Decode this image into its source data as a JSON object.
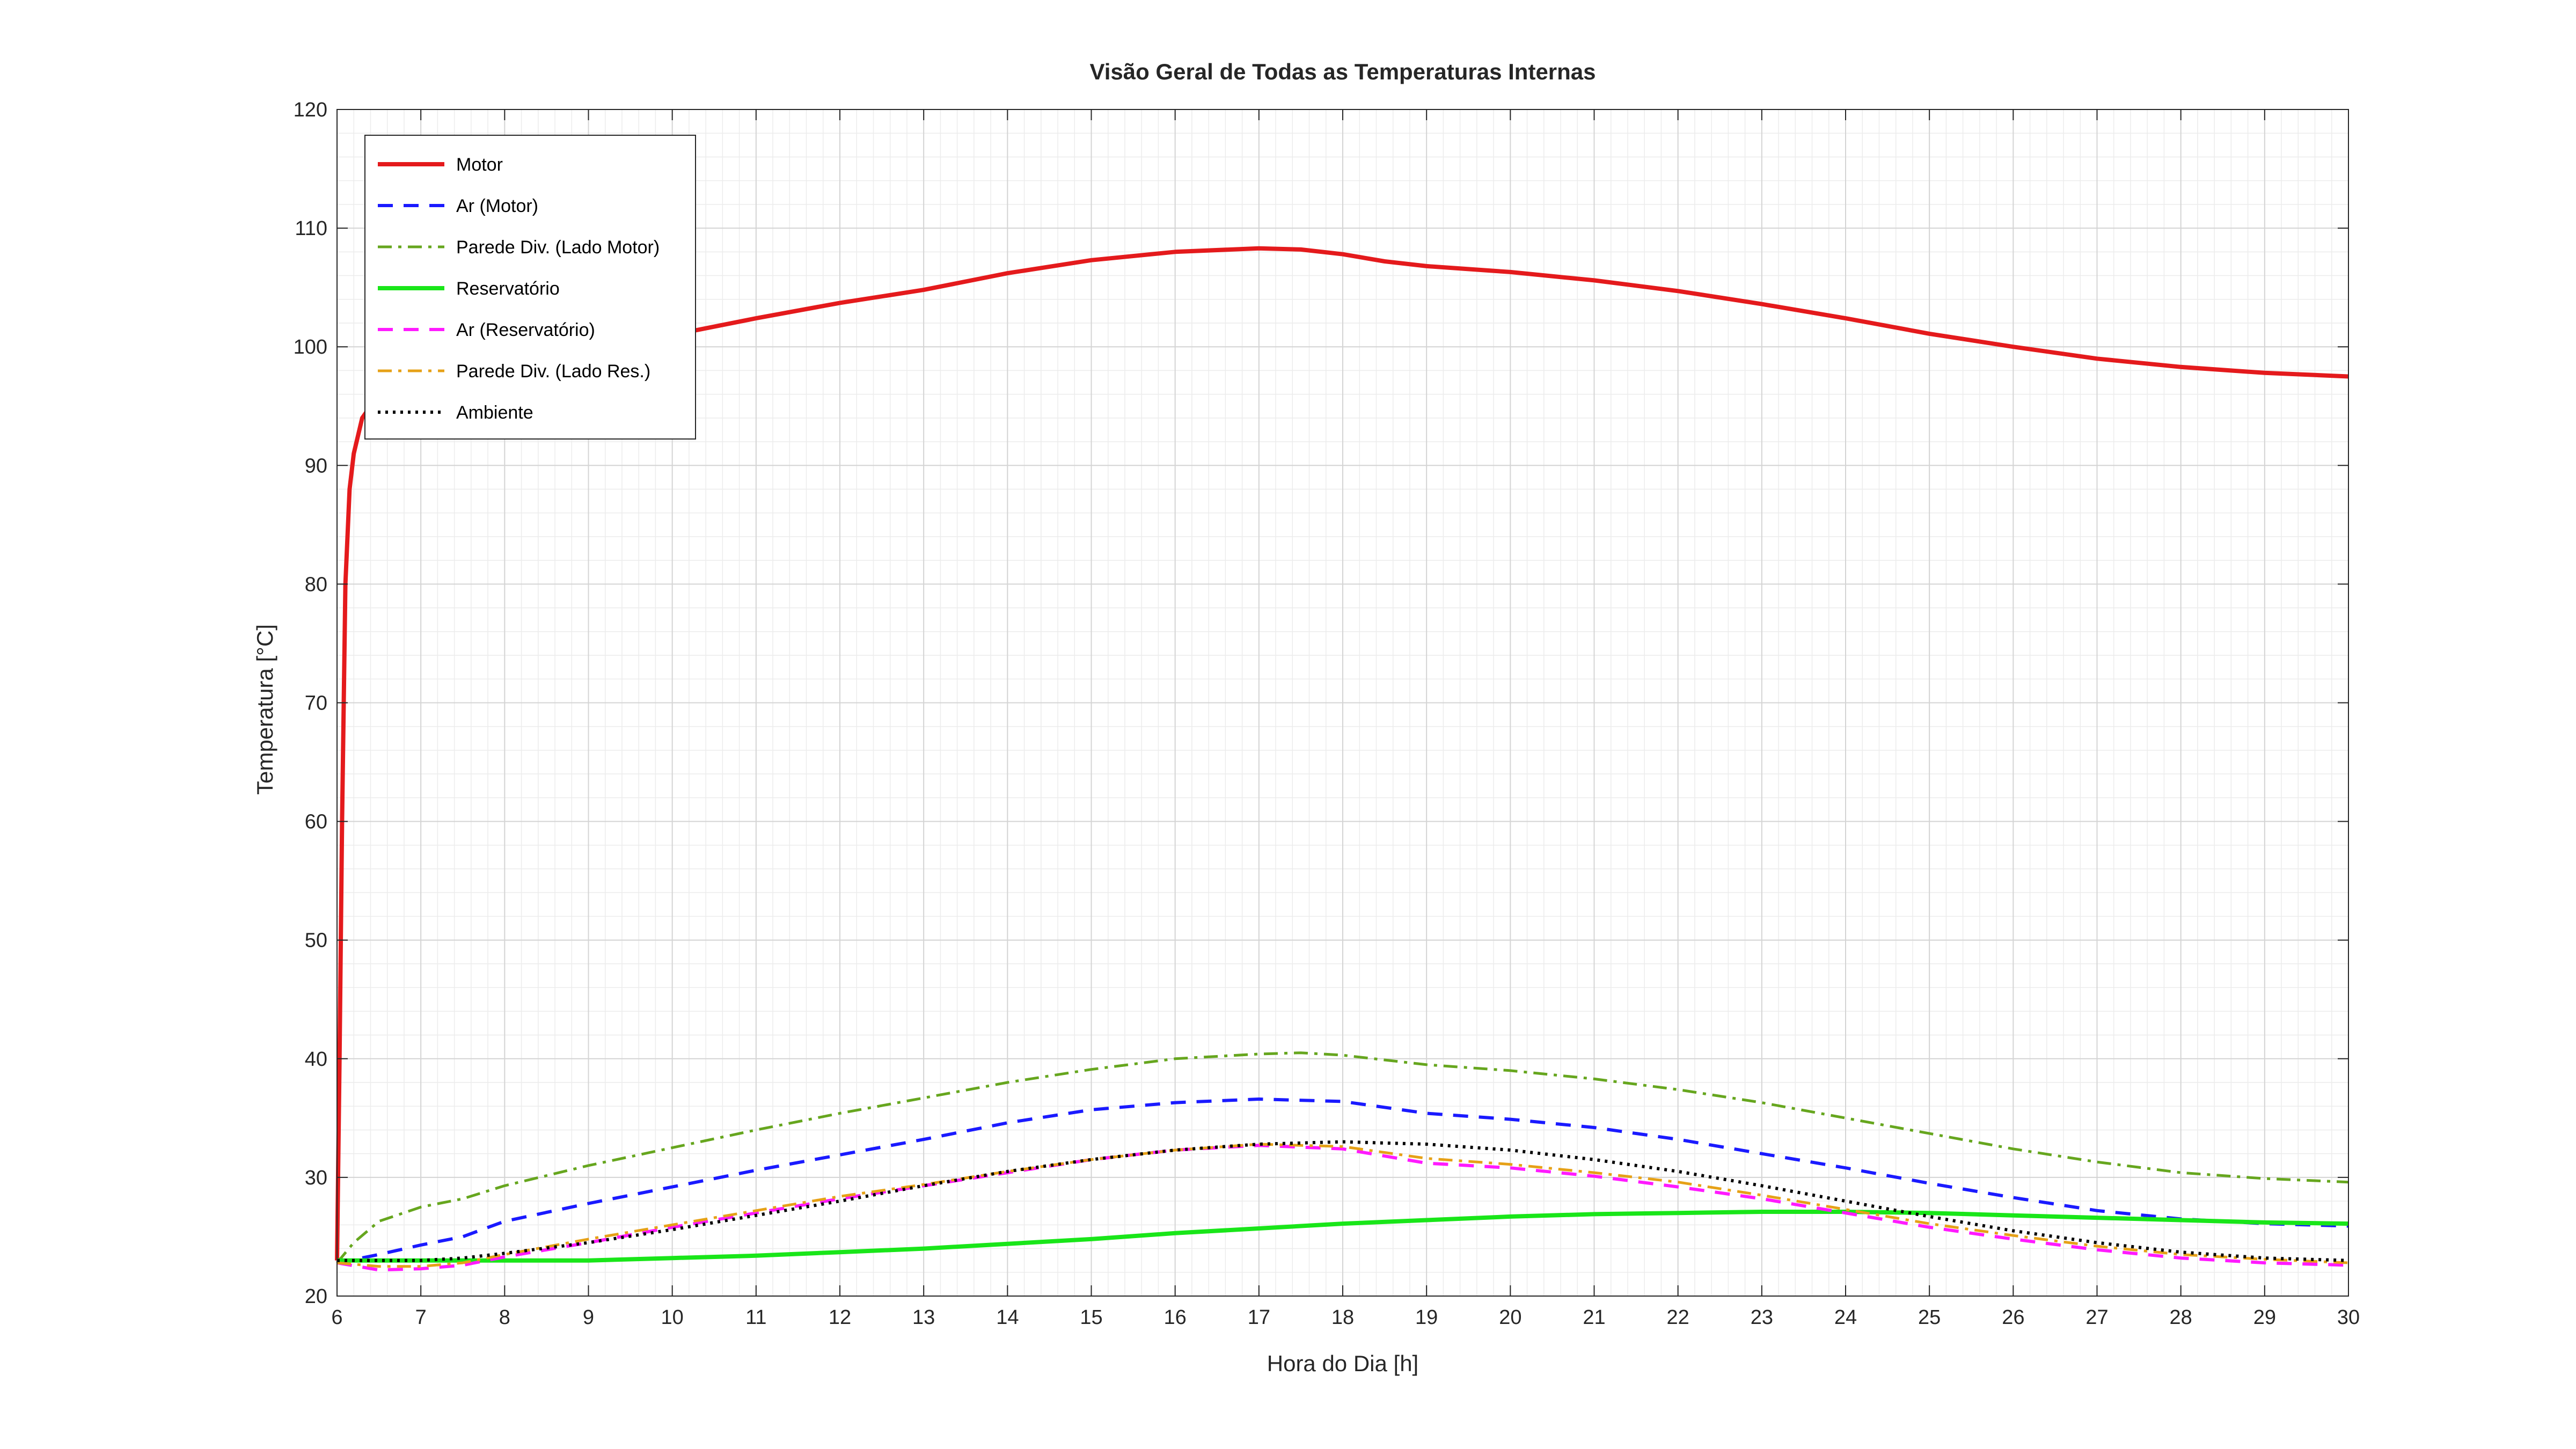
{
  "chart_data": {
    "type": "line",
    "title": "Visão Geral de Todas as Temperaturas Internas",
    "xlabel": "Hora do Dia [h]",
    "ylabel": "Temperatura [°C]",
    "xlim": [
      6,
      30
    ],
    "ylim": [
      20,
      120
    ],
    "xticks": [
      "6",
      "7",
      "8",
      "9",
      "10",
      "11",
      "12",
      "13",
      "14",
      "15",
      "16",
      "17",
      "18",
      "19",
      "20",
      "21",
      "22",
      "23",
      "24",
      "25",
      "26",
      "27",
      "28",
      "29",
      "30"
    ],
    "yticks": [
      "20",
      "30",
      "40",
      "50",
      "60",
      "70",
      "80",
      "90",
      "100",
      "110",
      "120"
    ],
    "grid": true,
    "minor_grid": true,
    "legend_position": "top-left",
    "series": [
      {
        "name": "Motor",
        "color": "#e41a1c",
        "style": "solid",
        "points": [
          [
            6,
            23
          ],
          [
            6.03,
            40
          ],
          [
            6.06,
            60
          ],
          [
            6.1,
            80
          ],
          [
            6.15,
            88
          ],
          [
            6.2,
            91
          ],
          [
            6.3,
            94
          ],
          [
            6.5,
            96
          ],
          [
            6.8,
            97.5
          ],
          [
            7,
            98.3
          ],
          [
            8,
            99.7
          ],
          [
            9,
            100.3
          ],
          [
            10,
            101
          ],
          [
            11,
            102.4
          ],
          [
            12,
            103.7
          ],
          [
            13,
            104.8
          ],
          [
            14,
            106.2
          ],
          [
            15,
            107.3
          ],
          [
            16,
            108
          ],
          [
            17,
            108.3
          ],
          [
            17.5,
            108.2
          ],
          [
            18,
            107.8
          ],
          [
            18.5,
            107.2
          ],
          [
            19,
            106.8
          ],
          [
            20,
            106.3
          ],
          [
            21,
            105.6
          ],
          [
            22,
            104.7
          ],
          [
            23,
            103.6
          ],
          [
            24,
            102.4
          ],
          [
            25,
            101.1
          ],
          [
            26,
            100
          ],
          [
            27,
            99
          ],
          [
            28,
            98.3
          ],
          [
            29,
            97.8
          ],
          [
            30,
            97.5
          ]
        ]
      },
      {
        "name": "Ar (Motor)",
        "color": "#1a1aff",
        "style": "dashed",
        "points": [
          [
            6,
            22.8
          ],
          [
            6.5,
            23.5
          ],
          [
            7,
            24.3
          ],
          [
            7.5,
            25
          ],
          [
            8,
            26.3
          ],
          [
            9,
            27.8
          ],
          [
            10,
            29.2
          ],
          [
            11,
            30.6
          ],
          [
            12,
            31.9
          ],
          [
            13,
            33.2
          ],
          [
            14,
            34.6
          ],
          [
            15,
            35.7
          ],
          [
            16,
            36.3
          ],
          [
            17,
            36.6
          ],
          [
            18,
            36.4
          ],
          [
            19,
            35.4
          ],
          [
            20,
            34.9
          ],
          [
            21,
            34.2
          ],
          [
            22,
            33.2
          ],
          [
            23,
            32
          ],
          [
            24,
            30.8
          ],
          [
            25,
            29.5
          ],
          [
            26,
            28.3
          ],
          [
            27,
            27.2
          ],
          [
            28,
            26.5
          ],
          [
            29,
            26.1
          ],
          [
            30,
            25.9
          ]
        ]
      },
      {
        "name": "Parede Div. (Lado Motor)",
        "color": "#66a61e",
        "style": "dashdot",
        "points": [
          [
            6,
            22.8
          ],
          [
            6.2,
            24.5
          ],
          [
            6.5,
            26.3
          ],
          [
            7,
            27.5
          ],
          [
            7.5,
            28.2
          ],
          [
            8,
            29.3
          ],
          [
            9,
            31
          ],
          [
            10,
            32.5
          ],
          [
            11,
            34
          ],
          [
            12,
            35.4
          ],
          [
            13,
            36.7
          ],
          [
            14,
            38
          ],
          [
            15,
            39.1
          ],
          [
            16,
            40
          ],
          [
            17,
            40.4
          ],
          [
            17.5,
            40.5
          ],
          [
            18,
            40.3
          ],
          [
            19,
            39.5
          ],
          [
            20,
            39
          ],
          [
            21,
            38.3
          ],
          [
            22,
            37.4
          ],
          [
            23,
            36.3
          ],
          [
            24,
            35
          ],
          [
            25,
            33.7
          ],
          [
            26,
            32.4
          ],
          [
            27,
            31.3
          ],
          [
            28,
            30.4
          ],
          [
            29,
            29.9
          ],
          [
            30,
            29.6
          ]
        ]
      },
      {
        "name": "Reservatório",
        "color": "#19e619",
        "style": "solid",
        "points": [
          [
            6,
            23
          ],
          [
            7,
            23
          ],
          [
            8,
            23
          ],
          [
            9,
            23
          ],
          [
            10,
            23.2
          ],
          [
            11,
            23.4
          ],
          [
            12,
            23.7
          ],
          [
            13,
            24
          ],
          [
            14,
            24.4
          ],
          [
            15,
            24.8
          ],
          [
            16,
            25.3
          ],
          [
            17,
            25.7
          ],
          [
            18,
            26.1
          ],
          [
            19,
            26.4
          ],
          [
            20,
            26.7
          ],
          [
            21,
            26.9
          ],
          [
            22,
            27
          ],
          [
            23,
            27.1
          ],
          [
            24,
            27.1
          ],
          [
            25,
            27
          ],
          [
            26,
            26.8
          ],
          [
            27,
            26.6
          ],
          [
            28,
            26.4
          ],
          [
            29,
            26.2
          ],
          [
            30,
            26.1
          ]
        ]
      },
      {
        "name": "Ar (Reservatório)",
        "color": "#ff1aff",
        "style": "dashed",
        "points": [
          [
            6,
            22.8
          ],
          [
            6.5,
            22.2
          ],
          [
            7,
            22.3
          ],
          [
            7.5,
            22.6
          ],
          [
            8,
            23.3
          ],
          [
            9,
            24.5
          ],
          [
            10,
            25.8
          ],
          [
            11,
            27
          ],
          [
            12,
            28.2
          ],
          [
            13,
            29.3
          ],
          [
            14,
            30.4
          ],
          [
            15,
            31.5
          ],
          [
            16,
            32.3
          ],
          [
            17,
            32.7
          ],
          [
            18,
            32.4
          ],
          [
            19,
            31.2
          ],
          [
            20,
            30.8
          ],
          [
            21,
            30.1
          ],
          [
            22,
            29.2
          ],
          [
            23,
            28.2
          ],
          [
            24,
            27
          ],
          [
            25,
            25.8
          ],
          [
            26,
            24.8
          ],
          [
            27,
            23.9
          ],
          [
            28,
            23.2
          ],
          [
            29,
            22.8
          ],
          [
            30,
            22.6
          ]
        ]
      },
      {
        "name": "Parede Div. (Lado Res.)",
        "color": "#e6a117",
        "style": "dashdot",
        "points": [
          [
            6,
            22.8
          ],
          [
            6.5,
            22.5
          ],
          [
            7,
            22.5
          ],
          [
            7.5,
            22.8
          ],
          [
            8,
            23.5
          ],
          [
            9,
            24.8
          ],
          [
            10,
            26
          ],
          [
            11,
            27.2
          ],
          [
            12,
            28.4
          ],
          [
            13,
            29.4
          ],
          [
            14,
            30.5
          ],
          [
            15,
            31.5
          ],
          [
            16,
            32.3
          ],
          [
            17,
            32.8
          ],
          [
            18,
            32.6
          ],
          [
            19,
            31.6
          ],
          [
            20,
            31.1
          ],
          [
            21,
            30.4
          ],
          [
            22,
            29.6
          ],
          [
            23,
            28.5
          ],
          [
            24,
            27.3
          ],
          [
            25,
            26.1
          ],
          [
            26,
            25.1
          ],
          [
            27,
            24.2
          ],
          [
            28,
            23.5
          ],
          [
            29,
            23.1
          ],
          [
            30,
            22.8
          ]
        ]
      },
      {
        "name": "Ambiente",
        "color": "#000000",
        "style": "dotted",
        "points": [
          [
            6,
            23
          ],
          [
            7,
            23
          ],
          [
            7.5,
            23.2
          ],
          [
            8,
            23.6
          ],
          [
            9,
            24.5
          ],
          [
            10,
            25.6
          ],
          [
            11,
            26.8
          ],
          [
            12,
            28
          ],
          [
            13,
            29.3
          ],
          [
            14,
            30.5
          ],
          [
            15,
            31.5
          ],
          [
            16,
            32.3
          ],
          [
            17,
            32.8
          ],
          [
            18,
            33
          ],
          [
            19,
            32.8
          ],
          [
            20,
            32.3
          ],
          [
            21,
            31.5
          ],
          [
            22,
            30.5
          ],
          [
            23,
            29.3
          ],
          [
            24,
            28
          ],
          [
            25,
            26.7
          ],
          [
            26,
            25.5
          ],
          [
            27,
            24.5
          ],
          [
            28,
            23.7
          ],
          [
            29,
            23.2
          ],
          [
            30,
            23
          ]
        ]
      }
    ]
  }
}
